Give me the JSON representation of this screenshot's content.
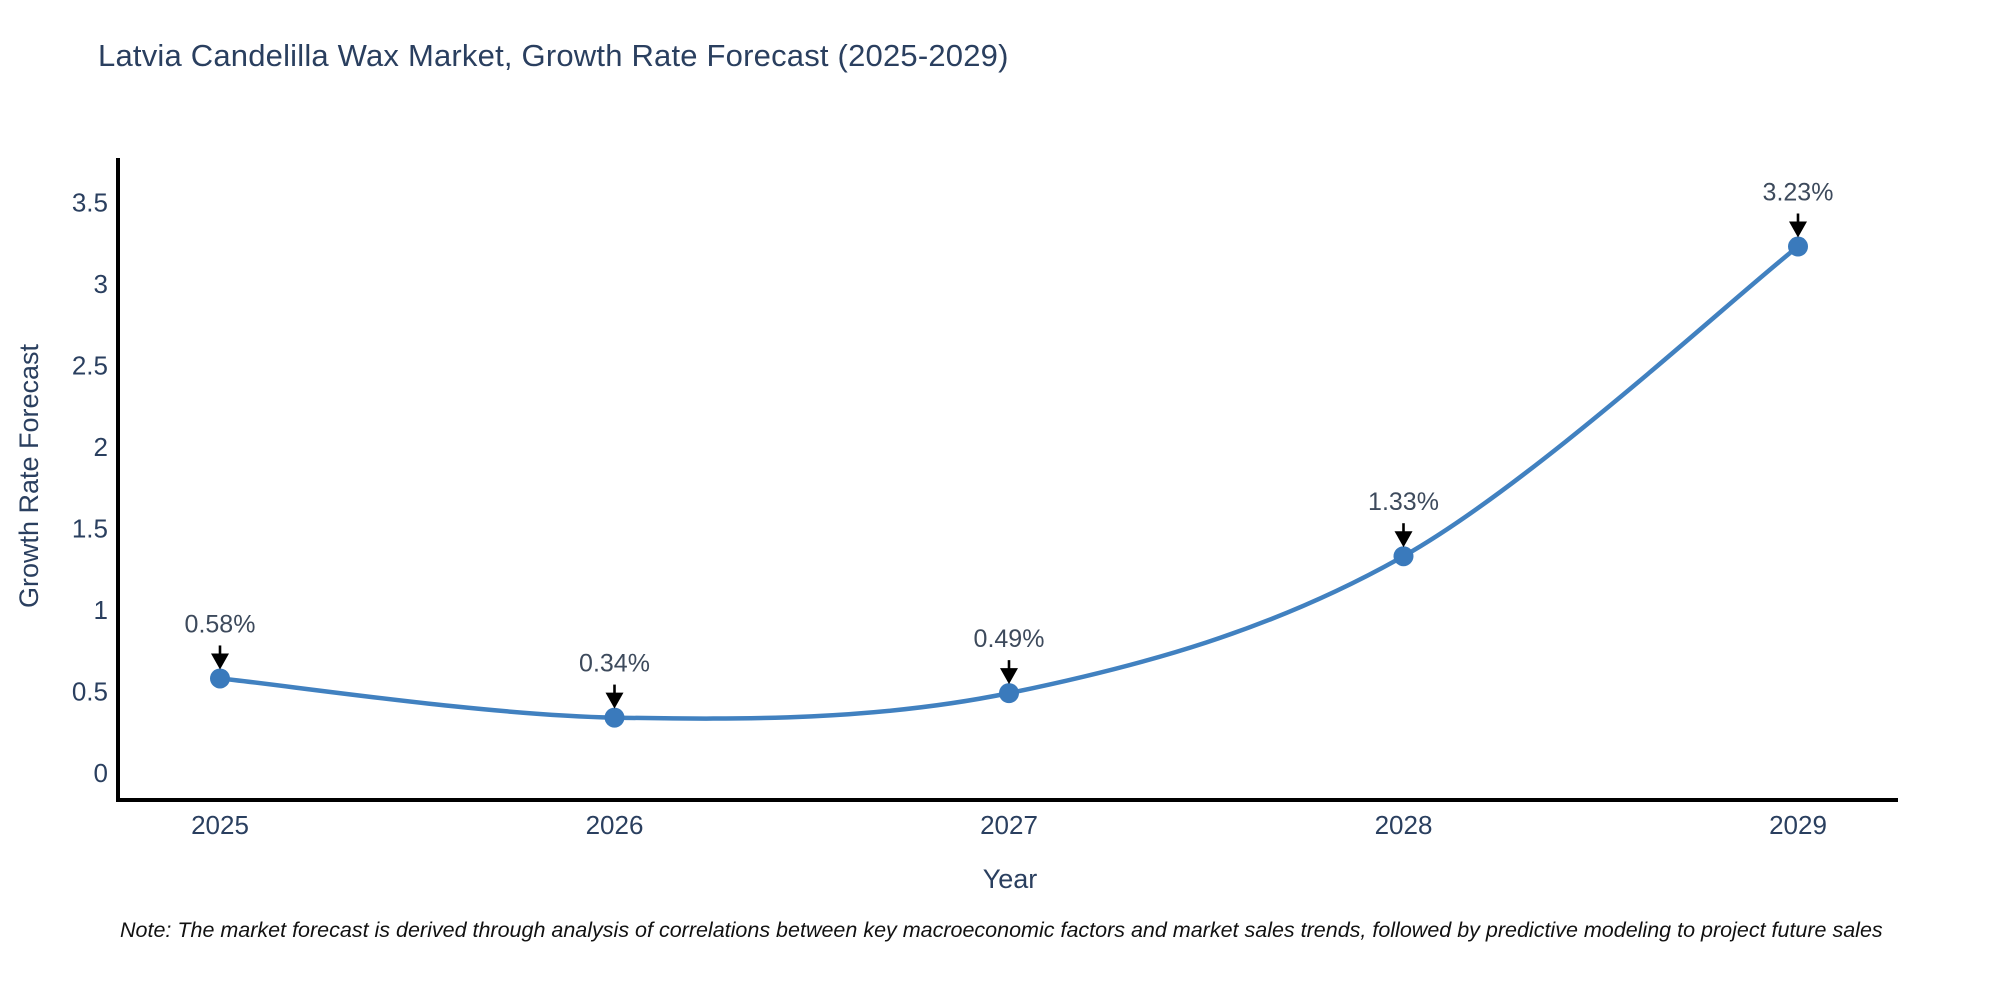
{
  "chart_data": {
    "type": "line",
    "title": "Latvia Candelilla Wax Market, Growth Rate Forecast (2025-2029)",
    "xlabel": "Year",
    "ylabel": "Growth Rate Forecast",
    "x": [
      "2025",
      "2026",
      "2027",
      "2028",
      "2029"
    ],
    "series": [
      {
        "name": "Growth Rate Forecast",
        "values": [
          0.58,
          0.34,
          0.49,
          1.33,
          3.23
        ]
      }
    ],
    "point_labels": [
      "0.58%",
      "0.34%",
      "0.49%",
      "1.33%",
      "3.23%"
    ],
    "y_ticks": [
      0,
      0.5,
      1,
      1.5,
      2,
      2.5,
      3,
      3.5
    ],
    "ylim": [
      -0.18,
      3.77
    ],
    "grid": false,
    "legend_position": "none",
    "line_shape": "spline",
    "annotation_arrows": true,
    "colors": {
      "line": "#4181c0",
      "marker": "#3a7abc",
      "axis": "#000000",
      "text": "#2a3f5f",
      "annotation": "#3d4a5c",
      "note": "#111111",
      "background": "#ffffff"
    }
  },
  "note": "Note: The market forecast is derived through analysis of correlations between key macroeconomic factors and market sales trends, followed by predictive modeling to project future sales"
}
